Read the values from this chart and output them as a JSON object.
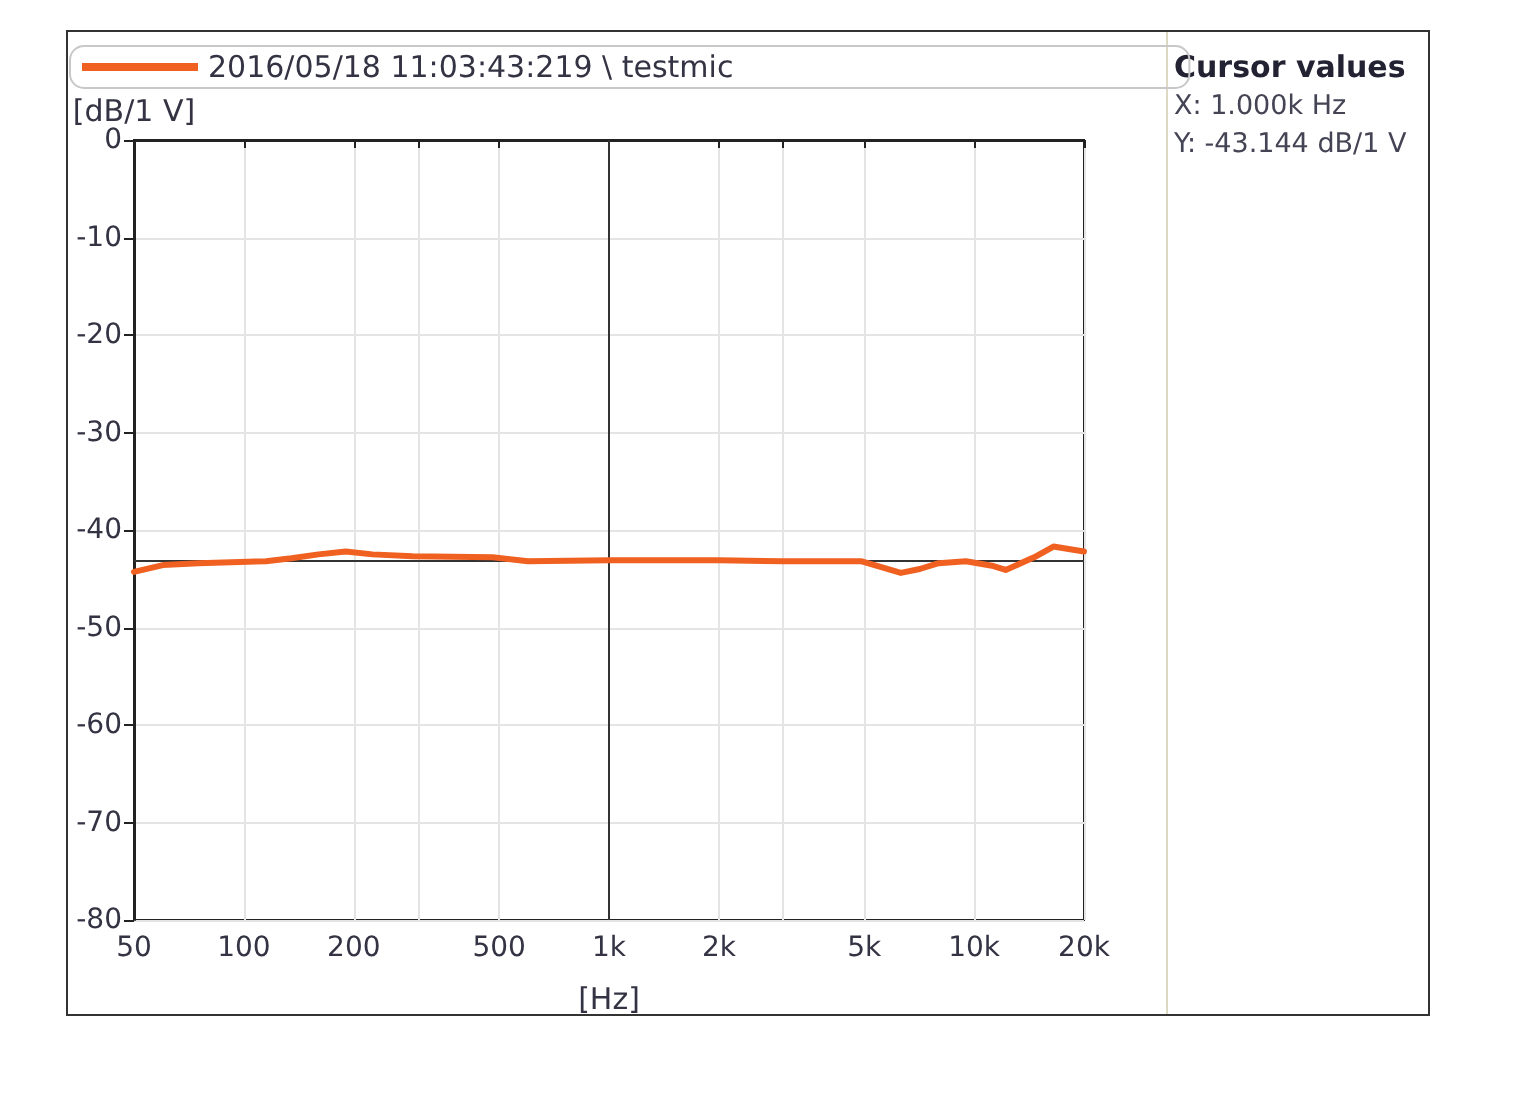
{
  "chart_data": {
    "type": "line",
    "log": "x",
    "xlabel": "[Hz]",
    "ylabel": "[dB/1 V]",
    "x": [
      50,
      60,
      75,
      115,
      135,
      160,
      190,
      225,
      290,
      480,
      600,
      1000,
      2000,
      3000,
      4900,
      6300,
      7100,
      8000,
      9500,
      11300,
      12200,
      14600,
      16500,
      17800,
      20000
    ],
    "series": [
      {
        "name": "2016/05/18 11:03:43:219 \\ testmic",
        "color": "#f06020",
        "values": [
          -44.3,
          -43.6,
          -43.4,
          -43.2,
          -42.9,
          -42.5,
          -42.2,
          -42.5,
          -42.7,
          -42.8,
          -43.2,
          -43.1,
          -43.1,
          -43.2,
          -43.2,
          -44.4,
          -44.0,
          -43.4,
          -43.2,
          -43.7,
          -44.1,
          -42.8,
          -41.7,
          -41.9,
          -42.2
        ]
      }
    ],
    "xlim": [
      50,
      20000
    ],
    "xticks": [
      50,
      100,
      200,
      {
        "value": 300,
        "label": null
      },
      500,
      {
        "value": 1000,
        "label": "1k"
      },
      {
        "value": 2000,
        "label": "2k"
      },
      {
        "value": 3000,
        "label": null
      },
      {
        "value": 5000,
        "label": "5k"
      },
      {
        "value": 10000,
        "label": "10k"
      },
      {
        "value": 20000,
        "label": "20k"
      }
    ],
    "ylim": [
      -80,
      0
    ],
    "yticks": [
      -80,
      -70,
      -60,
      -50,
      -40,
      -30,
      -20,
      -10,
      0
    ],
    "ref_lines": [
      {
        "axis": "x",
        "value": 1000,
        "color": "#333333"
      },
      {
        "axis": "y",
        "value": -43.144,
        "color": "#333333"
      }
    ],
    "annotations": [
      "Cursor values",
      "X: 1.000k Hz",
      "Y: -43.144 dB/1 V"
    ],
    "grid": true,
    "legend": "top",
    "marker": "none",
    "line_style": "solid"
  }
}
